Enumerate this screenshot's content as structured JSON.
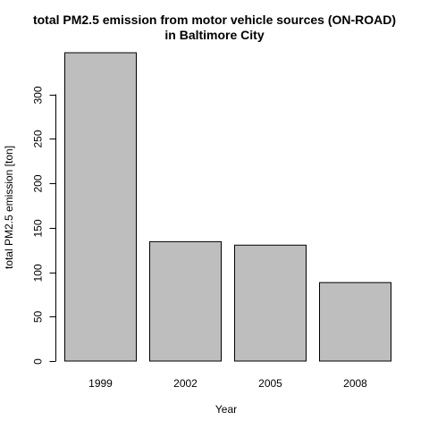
{
  "chart_data": {
    "type": "bar",
    "title": [
      "total PM2.5 emission from motor vehicle sources (ON-ROAD)",
      "in Baltimore City"
    ],
    "xlabel": "Year",
    "ylabel": "total PM2.5 emission [ton]",
    "categories": [
      "1999",
      "2002",
      "2005",
      "2008"
    ],
    "values": [
      346.8,
      134.3,
      130.4,
      88.3
    ],
    "ylim": [
      0,
      346.8
    ],
    "yticks": [
      0,
      50,
      100,
      150,
      200,
      250,
      300
    ],
    "bar_color": "#bebebe",
    "grid": false,
    "legend": "none"
  }
}
